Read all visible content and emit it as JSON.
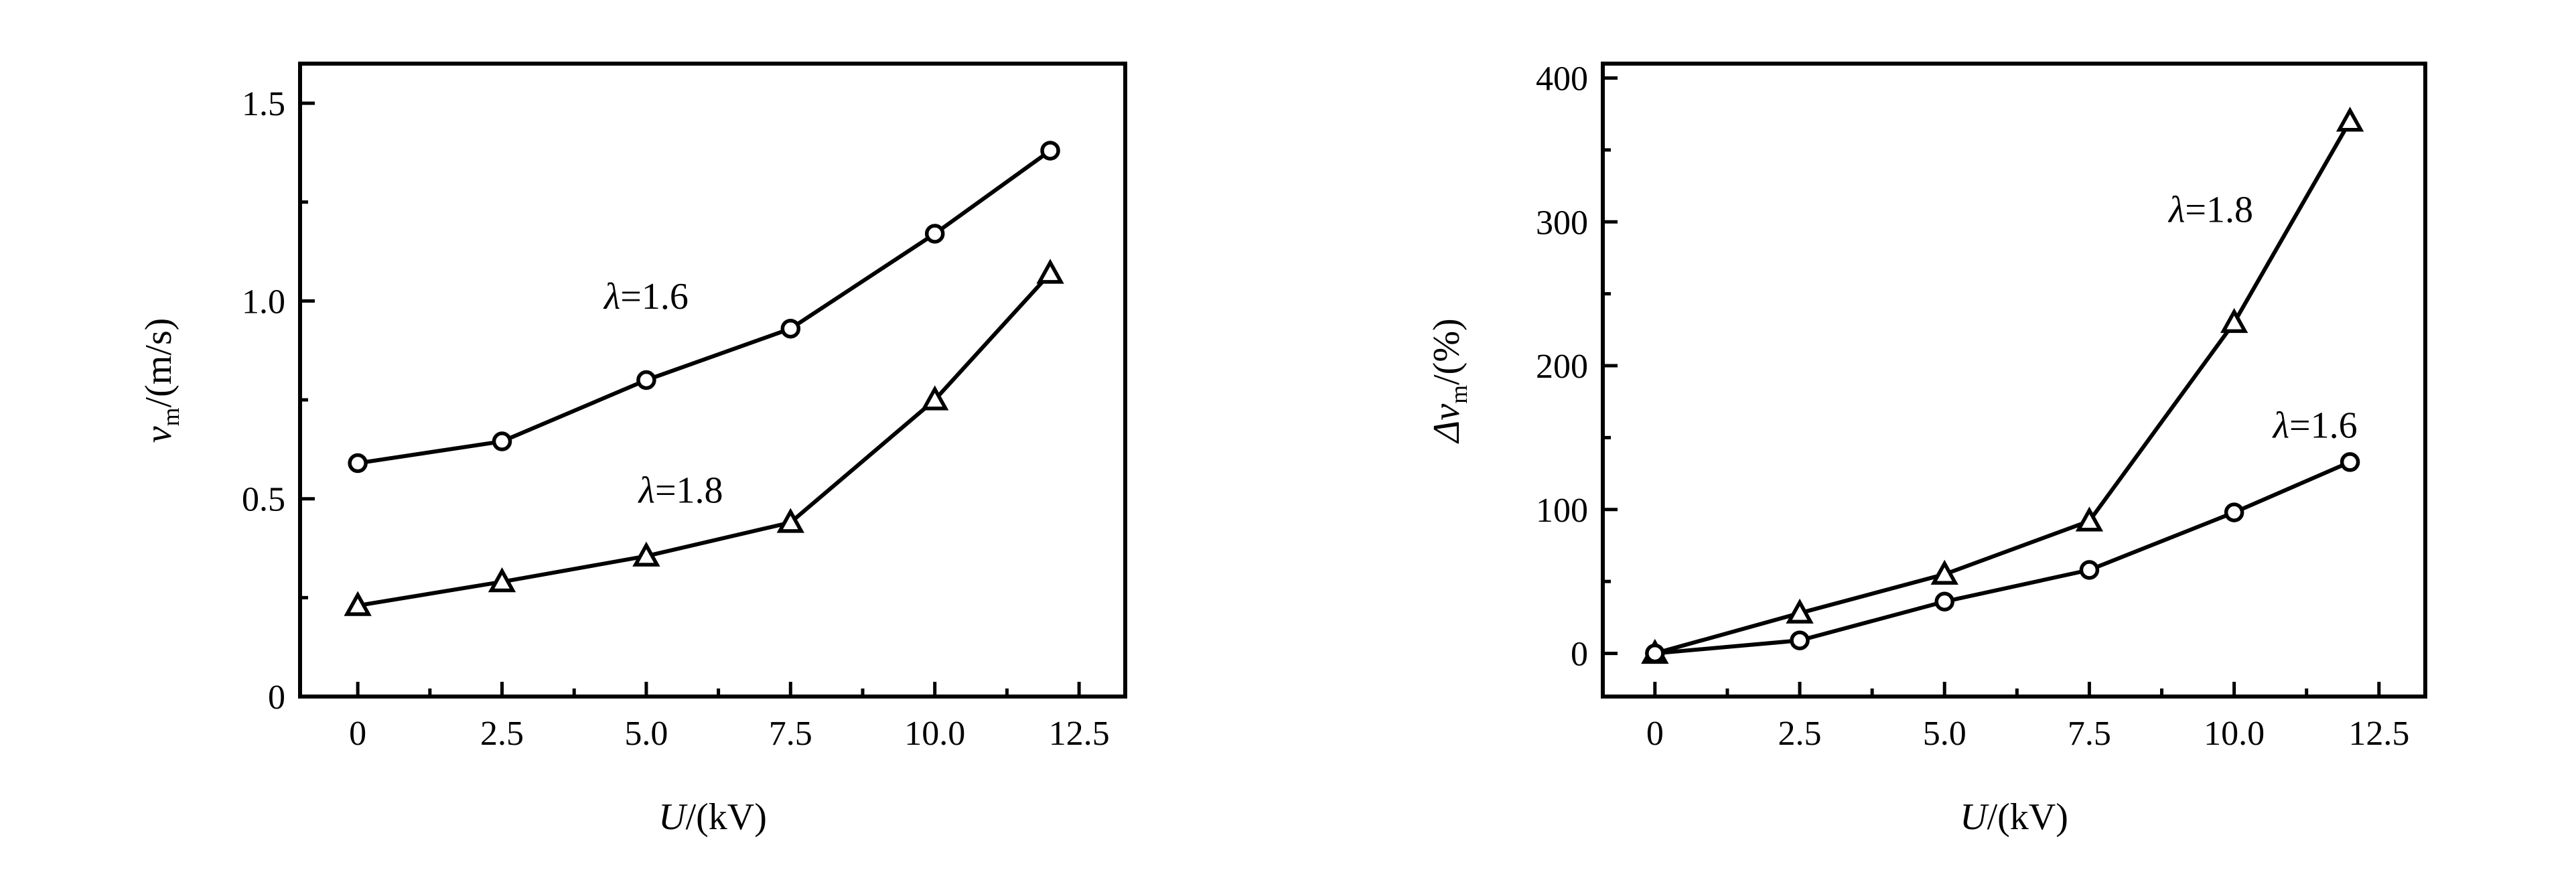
{
  "chart_data": [
    {
      "type": "line",
      "x": [
        0,
        2.5,
        5.0,
        7.5,
        10.0,
        12.0
      ],
      "xlim": [
        -1,
        13.3
      ],
      "ylim": [
        0,
        1.6
      ],
      "xticks": [
        0,
        2.5,
        5.0,
        7.5,
        10.0,
        12.5
      ],
      "xtick_labels": [
        "0",
        "2.5",
        "5.0",
        "7.5",
        "10.0",
        "12.5"
      ],
      "yticks": [
        0,
        0.5,
        1.0,
        1.5
      ],
      "ytick_labels": [
        "0",
        "0.5",
        "1.0",
        "1.5"
      ],
      "xlabel": {
        "italic": "U",
        "rest": "/(kV)"
      },
      "ylabel": {
        "italic": "v",
        "sub": "m",
        "rest": "/(m/s)"
      },
      "series": [
        {
          "values": [
            0.59,
            0.645,
            0.8,
            0.93,
            1.17,
            1.38
          ],
          "marker": "circle"
        },
        {
          "values": [
            0.23,
            0.29,
            0.355,
            0.44,
            0.75,
            1.07
          ],
          "marker": "triangle"
        }
      ],
      "annotations": [
        {
          "symbol": "λ",
          "text": "=1.6",
          "series": 0,
          "x": 5.0,
          "y": 0.98
        },
        {
          "symbol": "λ",
          "text": "=1.8",
          "series": 1,
          "x": 5.6,
          "y": 0.49
        }
      ],
      "grid": false,
      "legend": "none"
    },
    {
      "type": "line",
      "x": [
        0,
        2.5,
        5.0,
        7.5,
        10.0,
        12.0
      ],
      "xlim": [
        -0.9,
        13.3
      ],
      "ylim": [
        -30,
        410
      ],
      "xticks": [
        0,
        2.5,
        5.0,
        7.5,
        10.0,
        12.5
      ],
      "xtick_labels": [
        "0",
        "2.5",
        "5.0",
        "7.5",
        "10.0",
        "12.5"
      ],
      "yticks": [
        0,
        100,
        200,
        300,
        400
      ],
      "ytick_labels": [
        "0",
        "100",
        "200",
        "300",
        "400"
      ],
      "xlabel": {
        "italic": "U",
        "rest": "/(kV)"
      },
      "ylabel": {
        "italic": "Δv",
        "sub": "m",
        "rest": "/(%)"
      },
      "series": [
        {
          "values": [
            0,
            28,
            55,
            92,
            230,
            370
          ],
          "marker": "triangle"
        },
        {
          "values": [
            0,
            9,
            36,
            58,
            98,
            133
          ],
          "marker": "circle"
        }
      ],
      "annotations": [
        {
          "symbol": "λ",
          "text": "=1.8",
          "series": 0,
          "x": 9.6,
          "y": 300
        },
        {
          "symbol": "λ",
          "text": "=1.6",
          "series": 1,
          "x": 11.4,
          "y": 150
        }
      ],
      "grid": false,
      "legend": "none"
    }
  ]
}
